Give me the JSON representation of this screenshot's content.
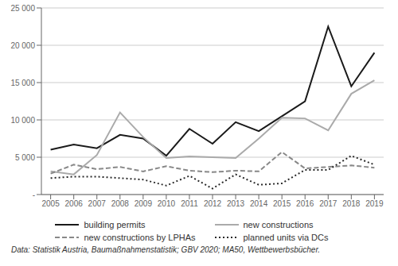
{
  "chart_data": {
    "type": "line",
    "caption": "Data: Statistik Austria, Baumaßnahmenstatistik; GBV 2020; MA50, Wettbewerbsbücher.",
    "x": [
      2005,
      2006,
      2007,
      2008,
      2009,
      2010,
      2011,
      2012,
      2013,
      2014,
      2015,
      2016,
      2017,
      2018,
      2019
    ],
    "xlim": [
      2004.6,
      2019.4
    ],
    "xticks": [
      2005,
      2006,
      2007,
      2008,
      2009,
      2010,
      2011,
      2012,
      2013,
      2014,
      2015,
      2016,
      2017,
      2018,
      2019
    ],
    "ylim": [
      0,
      25000
    ],
    "yticks": [
      {
        "value": 0,
        "label": "-"
      },
      {
        "value": 5000,
        "label": "5 000"
      },
      {
        "value": 10000,
        "label": "10 000"
      },
      {
        "value": 15000,
        "label": "15 000"
      },
      {
        "value": 20000,
        "label": "20 000"
      },
      {
        "value": 25000,
        "label": "25 000"
      }
    ],
    "grid": true,
    "legend": "bottom",
    "series": [
      {
        "name": "building permits",
        "color": "#1a1a1a",
        "line_style": "solid",
        "values": [
          6000,
          6700,
          6200,
          8000,
          7500,
          5200,
          8800,
          6800,
          9700,
          8500,
          10500,
          12500,
          22500,
          14500,
          19000
        ]
      },
      {
        "name": "new constructions",
        "color": "#aaaaaa",
        "line_style": "solid",
        "values": [
          3100,
          2700,
          5300,
          11000,
          7700,
          4900,
          5100,
          5000,
          4900,
          7500,
          10300,
          10200,
          8600,
          13500,
          15300
        ]
      },
      {
        "name": "new constructions by LPHAs",
        "color": "#888888",
        "line_style": "dashed",
        "values": [
          2800,
          4000,
          3400,
          3700,
          3100,
          3800,
          3200,
          3000,
          3200,
          3100,
          5700,
          3500,
          3700,
          3900,
          3600
        ]
      },
      {
        "name": "planned units via DCs",
        "color": "#2a2a2a",
        "line_style": "dotted",
        "values": [
          2200,
          2400,
          2400,
          2200,
          2000,
          1200,
          2500,
          800,
          2700,
          1300,
          1500,
          3300,
          3300,
          5200,
          4000
        ]
      }
    ]
  }
}
